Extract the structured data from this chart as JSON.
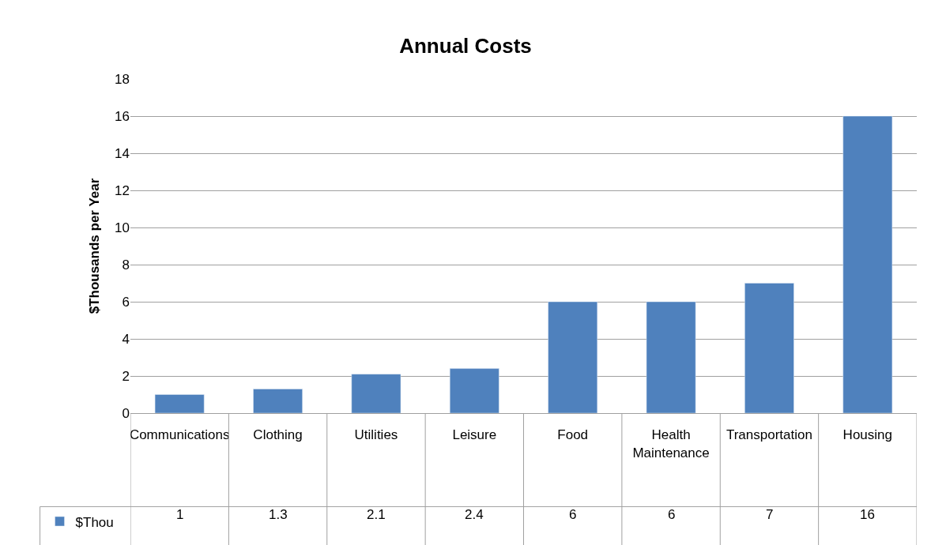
{
  "chart_data": {
    "type": "bar",
    "title": "Annual Costs",
    "ylabel": "$Thousands per Year",
    "categories": [
      "Communications",
      "Clothing",
      "Utilities",
      "Leisure",
      "Food",
      "Health Maintenance",
      "Transportation",
      "Housing"
    ],
    "series": [
      {
        "name": "$Thou",
        "color": "#4f81bd",
        "values": [
          1,
          1.3,
          2.1,
          2.4,
          6,
          6,
          7,
          16
        ]
      }
    ],
    "ylim": [
      0,
      18
    ],
    "yticks": [
      0,
      2,
      4,
      6,
      8,
      10,
      12,
      14,
      16,
      18
    ],
    "grid": "y",
    "legend": "bottom left",
    "data_labels": true
  }
}
